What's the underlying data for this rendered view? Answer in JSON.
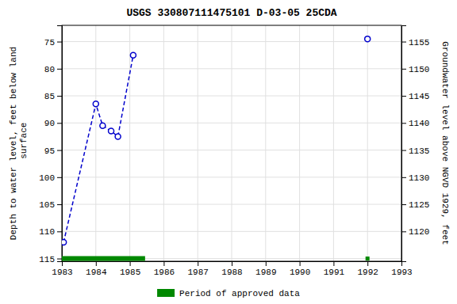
{
  "chart_data": {
    "type": "line",
    "title": "USGS 330807111475101 D-03-05 25CDA",
    "y_label": "Depth to water level, feet below land\n surface",
    "y2_label": "Groundwater level above NGVD 1929, feet",
    "xlim": [
      1983,
      1993
    ],
    "ylim": [
      115.5,
      72
    ],
    "y2lim": [
      1114.5,
      1158
    ],
    "xticks": [
      1983,
      1984,
      1985,
      1986,
      1987,
      1988,
      1989,
      1990,
      1991,
      1992,
      1993
    ],
    "yticks": [
      75,
      80,
      85,
      90,
      95,
      100,
      105,
      110,
      115
    ],
    "y2ticks": [
      1120,
      1125,
      1130,
      1135,
      1140,
      1145,
      1150,
      1155
    ],
    "grid": true,
    "legend": "bottom",
    "series": [
      {
        "x": [
          1983.05,
          1984.0,
          1984.2,
          1984.45,
          1984.65,
          1985.1
        ],
        "values": [
          112.0,
          86.5,
          90.5,
          91.5,
          92.5,
          77.5
        ],
        "color": "#0000cc",
        "line_style": "dashed",
        "marker": "circle"
      },
      {
        "x": [
          1992.0
        ],
        "values": [
          74.5
        ],
        "color": "#0000cc",
        "line_style": "none",
        "marker": "circle"
      },
      {
        "name": "Period of approved data",
        "x": [
          1983.0,
          1985.45
        ],
        "values": [
          115.0,
          115.0
        ],
        "color": "#008800",
        "line_style": "solid"
      },
      {
        "x": [
          1992.0
        ],
        "values": [
          115.0
        ],
        "color": "#008800",
        "line_style": "none",
        "marker": "square"
      }
    ]
  }
}
